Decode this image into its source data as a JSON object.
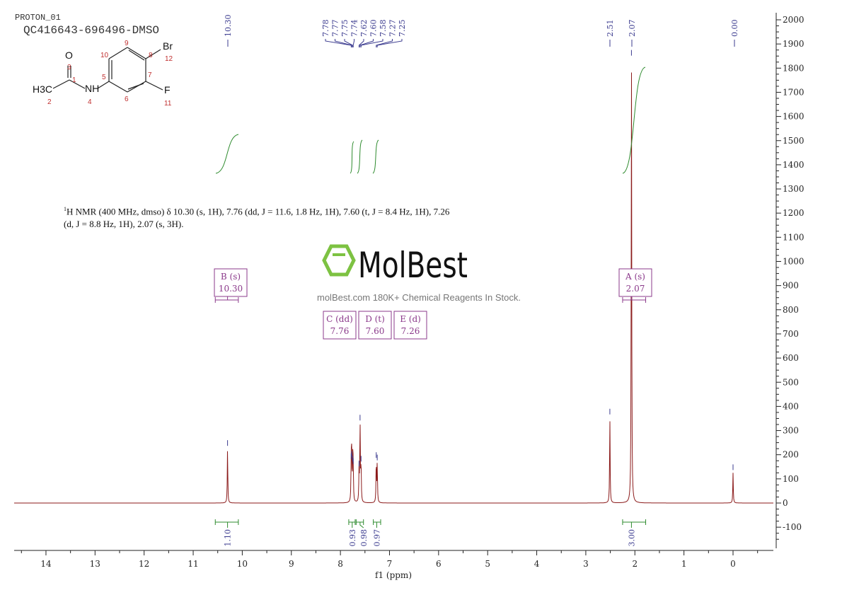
{
  "header": {
    "experiment": "PROTON_01",
    "sample": "QC416643-696496-DMSO"
  },
  "structure": {
    "atoms": [
      "O",
      "3",
      "1",
      "H3C",
      "2",
      "NH",
      "4",
      "5",
      "10",
      "9",
      "8",
      "Br",
      "12",
      "7",
      "6",
      "F",
      "11"
    ]
  },
  "description": {
    "line1": "H NMR (400 MHz, dmso) δ 10.30 (s, 1H), 7.76 (dd, J = 11.6, 1.8 Hz, 1H), 7.60 (t, J = 8.4 Hz, 1H), 7.26",
    "sup": "1",
    "line2": "(d, J = 8.8 Hz, 1H), 2.07 (s, 3H)."
  },
  "watermark": {
    "brand": "MolBest",
    "tagline": "molBest.com 180K+ Chemical Reagents In Stock.",
    "color": "#7dc242"
  },
  "chart_data": {
    "type": "line",
    "xlabel": "f1 (ppm)",
    "xlim": [
      14.6,
      -0.8
    ],
    "x_reversed": true,
    "ylim": [
      -200,
      2050
    ],
    "xticks": [
      14,
      13,
      12,
      11,
      10,
      9,
      8,
      7,
      6,
      5,
      4,
      3,
      2,
      1,
      0
    ],
    "yticks": [
      2000,
      1900,
      1800,
      1700,
      1600,
      1500,
      1400,
      1300,
      1200,
      1100,
      1000,
      900,
      800,
      700,
      600,
      500,
      400,
      300,
      200,
      100,
      0,
      -100
    ],
    "y_axis_side": "right",
    "grid": false,
    "colors": {
      "spectrum": "#8b1a1a",
      "integral": "#2e8b2e",
      "peak_label": "#3b3b8f",
      "multiplet": "#8b3a8b"
    },
    "peaks": [
      {
        "ppm": 10.3,
        "height": 225
      },
      {
        "ppm": 7.78,
        "height": 170
      },
      {
        "ppm": 7.77,
        "height": 180
      },
      {
        "ppm": 7.75,
        "height": 160
      },
      {
        "ppm": 7.74,
        "height": 150
      },
      {
        "ppm": 7.62,
        "height": 140
      },
      {
        "ppm": 7.6,
        "height": 330
      },
      {
        "ppm": 7.58,
        "height": 160
      },
      {
        "ppm": 7.27,
        "height": 175
      },
      {
        "ppm": 7.25,
        "height": 165
      },
      {
        "ppm": 2.51,
        "height": 355
      },
      {
        "ppm": 2.07,
        "height": 1840
      },
      {
        "ppm": 0.0,
        "height": 125
      }
    ],
    "peak_labels": [
      "10.30",
      "7.78",
      "7.77",
      "7.75",
      "7.74",
      "7.62",
      "7.60",
      "7.58",
      "7.27",
      "7.25",
      "2.51",
      "2.07",
      "0.00"
    ],
    "multiplets": [
      {
        "id": "B (s)",
        "shift": "10.30",
        "from": 10.55,
        "to": 10.08
      },
      {
        "id": "D (t)",
        "shift": "7.60",
        "from": 7.66,
        "to": 7.55
      },
      {
        "id": "C (dd)",
        "shift": "7.76",
        "from": 7.82,
        "to": 7.7
      },
      {
        "id": "E (d)",
        "shift": "7.26",
        "from": 7.32,
        "to": 7.2
      },
      {
        "id": "A (s)",
        "shift": "2.07",
        "from": 2.25,
        "to": 1.78
      }
    ],
    "integrals": [
      {
        "label": "1.10",
        "from": 10.55,
        "to": 10.08,
        "center": 10.3
      },
      {
        "label": "0.93",
        "from": 7.83,
        "to": 7.7,
        "center": 7.76
      },
      {
        "label": "0.98",
        "from": 7.68,
        "to": 7.53,
        "center": 7.6
      },
      {
        "label": "0.97",
        "from": 7.33,
        "to": 7.18,
        "center": 7.26
      },
      {
        "label": "3.00",
        "from": 2.25,
        "to": 1.78,
        "center": 2.07
      }
    ]
  }
}
